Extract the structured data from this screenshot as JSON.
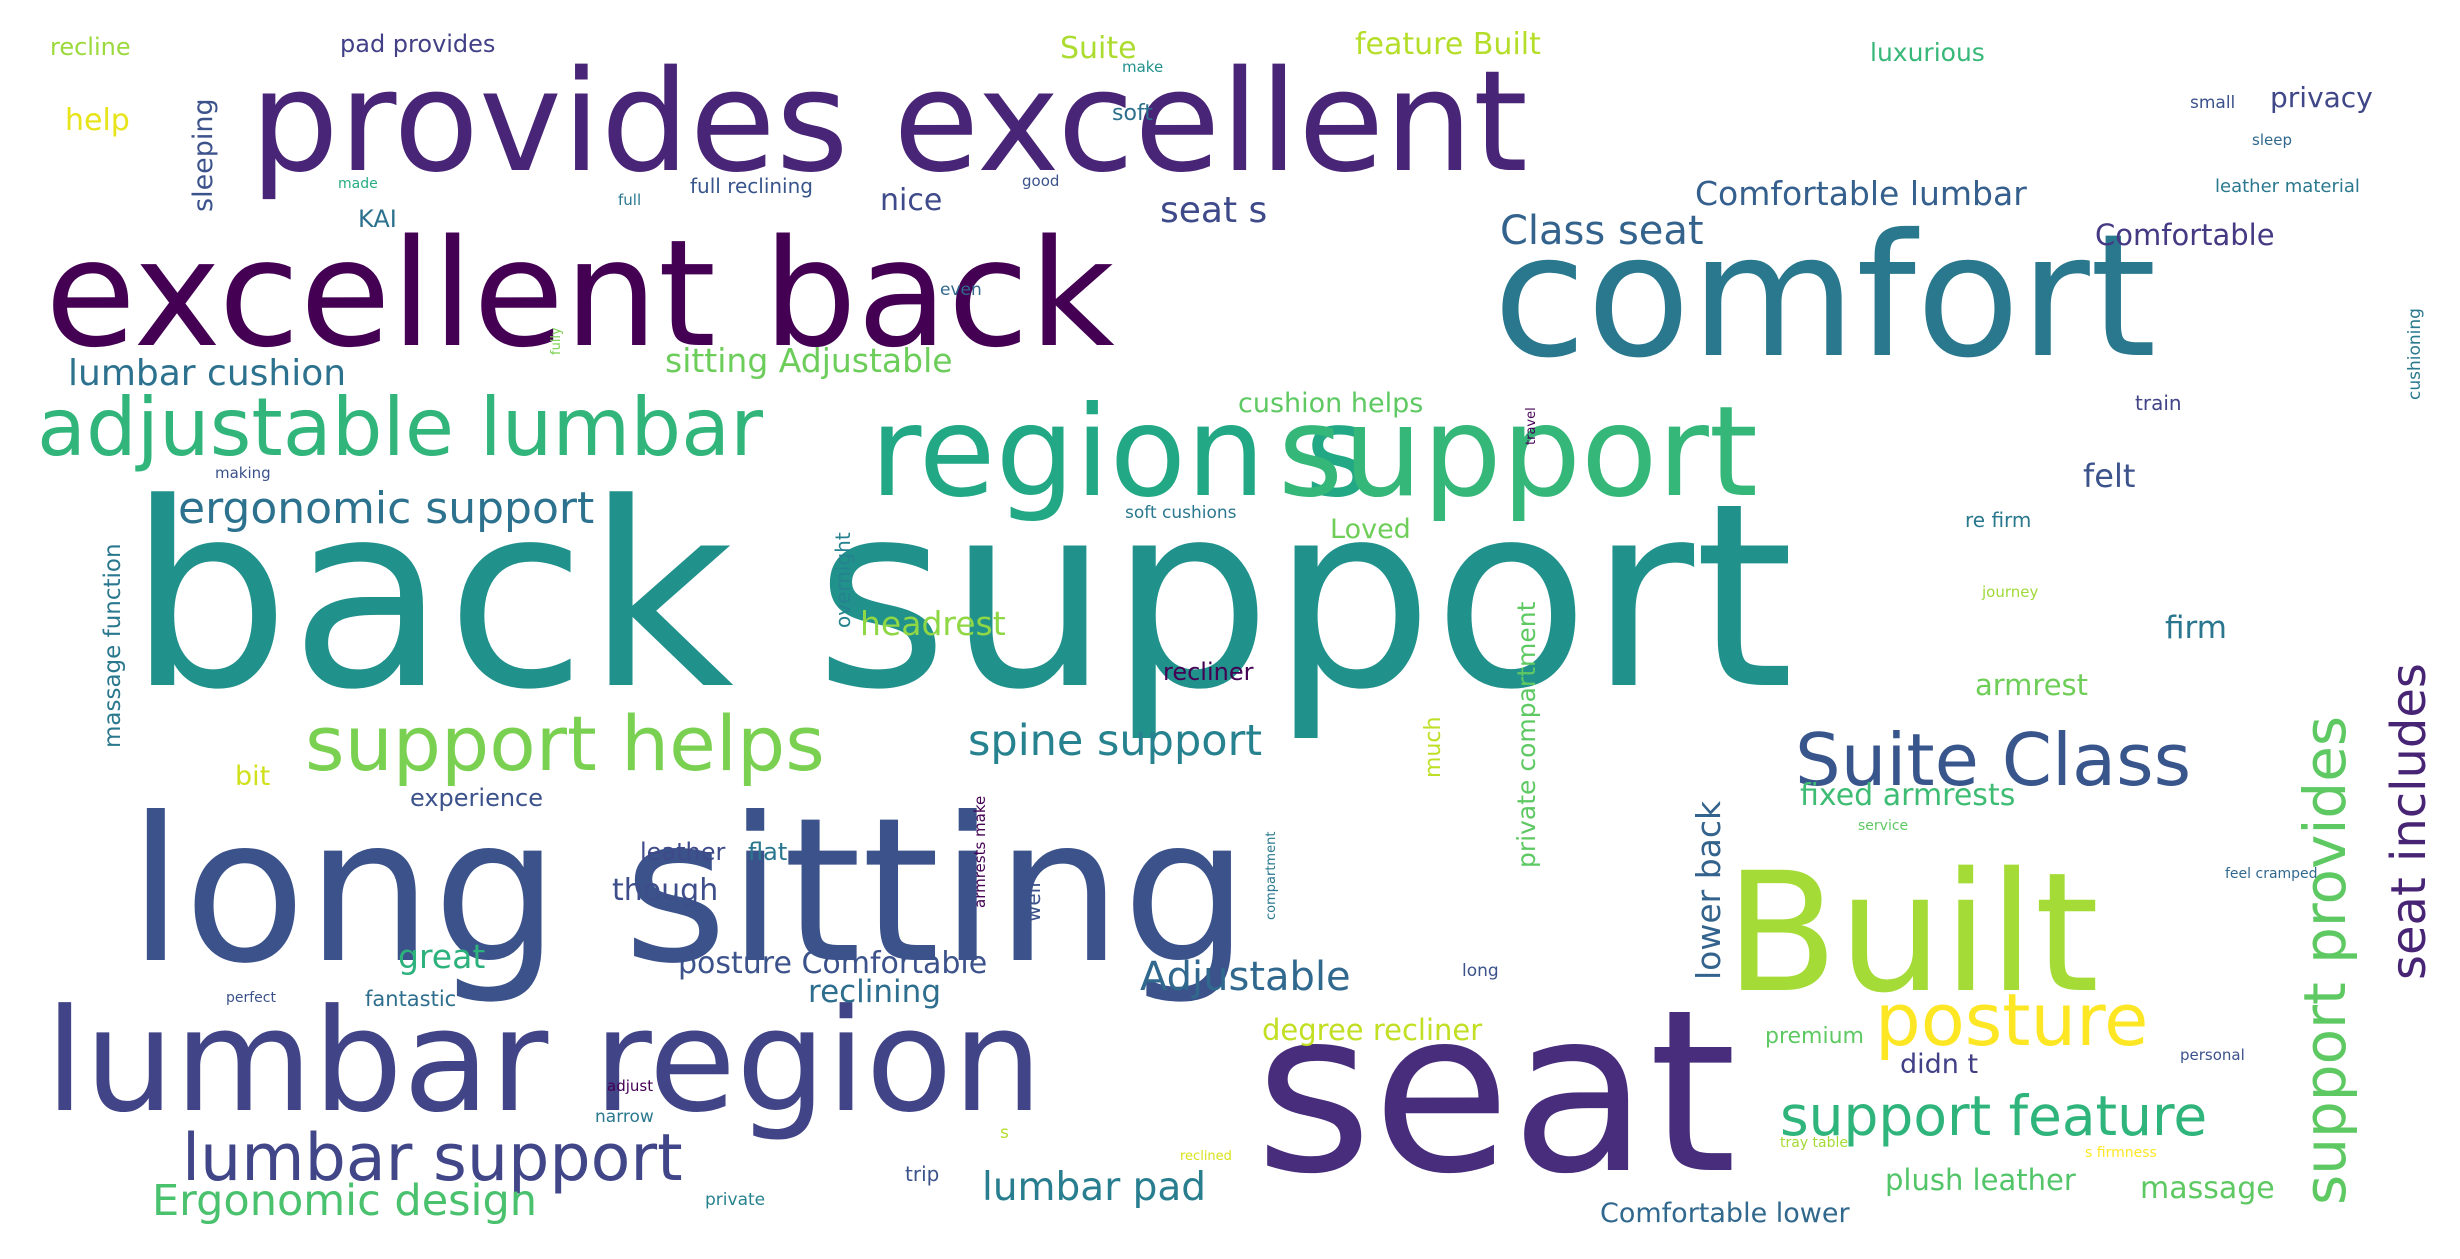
{
  "words": [
    {
      "text": "back support",
      "color": "#21918c"
    },
    {
      "text": "long sitting",
      "color": "#3b528b"
    },
    {
      "text": "comfort",
      "color": "#2a788e"
    },
    {
      "text": "seat",
      "color": "#472d7b"
    },
    {
      "text": "excellent back",
      "color": "#440154"
    },
    {
      "text": "provides excellent",
      "color": "#482576"
    },
    {
      "text": "lumbar region",
      "color": "#414487"
    },
    {
      "text": "region s",
      "color": "#22a884"
    },
    {
      "text": "support",
      "color": "#35b779"
    },
    {
      "text": "Built",
      "color": "#a5db36"
    },
    {
      "text": "adjustable lumbar",
      "color": "#31b57b"
    },
    {
      "text": "support helps",
      "color": "#7ad151"
    },
    {
      "text": "Suite Class",
      "color": "#39568c"
    },
    {
      "text": "lumbar support",
      "color": "#404688"
    },
    {
      "text": "posture",
      "color": "#fde725"
    },
    {
      "text": "support feature",
      "color": "#2fb47c"
    },
    {
      "text": "ergonomic support",
      "color": "#2c728e"
    },
    {
      "text": "Ergonomic design",
      "color": "#4ac16d"
    },
    {
      "text": "spine support",
      "color": "#26828e"
    },
    {
      "text": "lumbar cushion",
      "color": "#2c718e"
    },
    {
      "text": "Class seat",
      "color": "#33638d"
    },
    {
      "text": "Adjustable",
      "color": "#31688e"
    },
    {
      "text": "lumbar pad",
      "color": "#287d8e"
    },
    {
      "text": "Comfortable lumbar",
      "color": "#355f8d"
    },
    {
      "text": "sitting Adjustable",
      "color": "#6ccd5a"
    },
    {
      "text": "headrest",
      "color": "#8fd744"
    },
    {
      "text": "seat s",
      "color": "#3e4989"
    },
    {
      "text": "nice",
      "color": "#3e4a89"
    },
    {
      "text": "Comfortable",
      "color": "#443983"
    },
    {
      "text": "cushion helps",
      "color": "#5ec962"
    },
    {
      "text": "Loved",
      "color": "#6ece58"
    },
    {
      "text": "felt",
      "color": "#3b528b"
    },
    {
      "text": "firm",
      "color": "#2a768e"
    },
    {
      "text": "armrest",
      "color": "#6ece58"
    },
    {
      "text": "fixed armrests",
      "color": "#3ebc74"
    },
    {
      "text": "degree recliner",
      "color": "#c2df23"
    },
    {
      "text": "posture Comfortable",
      "color": "#3b528b"
    },
    {
      "text": "reclining",
      "color": "#2e6e8e"
    },
    {
      "text": "great",
      "color": "#2db27d"
    },
    {
      "text": "though",
      "color": "#3d4e8a"
    },
    {
      "text": "plush leather",
      "color": "#52c569"
    },
    {
      "text": "massage",
      "color": "#5ec962"
    },
    {
      "text": "Comfortable lower",
      "color": "#31688e"
    },
    {
      "text": "didn t",
      "color": "#424086"
    },
    {
      "text": "premium",
      "color": "#5ec962"
    },
    {
      "text": "privacy",
      "color": "#3f4788"
    },
    {
      "text": "feature Built",
      "color": "#b5de2b"
    },
    {
      "text": "Suite",
      "color": "#addc30"
    },
    {
      "text": "luxurious",
      "color": "#37b878"
    },
    {
      "text": "pad provides",
      "color": "#424086"
    },
    {
      "text": "recline",
      "color": "#9bd93c"
    },
    {
      "text": "help",
      "color": "#e7e419"
    },
    {
      "text": "KAI",
      "color": "#2c728e"
    },
    {
      "text": "soft",
      "color": "#2d708e"
    },
    {
      "text": "full reclining",
      "color": "#39568c"
    },
    {
      "text": "bit",
      "color": "#d0e11c"
    },
    {
      "text": "experience",
      "color": "#3b528b"
    },
    {
      "text": "flat",
      "color": "#2a768e"
    },
    {
      "text": "leather",
      "color": "#3e4a89"
    },
    {
      "text": "recliner",
      "color": "#440154"
    },
    {
      "text": "fantastic",
      "color": "#2e6e8e"
    },
    {
      "text": "trip",
      "color": "#3b528b"
    },
    {
      "text": "private",
      "color": "#26828e"
    },
    {
      "text": "narrow",
      "color": "#2a788e"
    },
    {
      "text": "adjust",
      "color": "#440154"
    },
    {
      "text": "perfect",
      "color": "#3b528b"
    },
    {
      "text": "even",
      "color": "#31688e"
    },
    {
      "text": "full",
      "color": "#2a788e"
    },
    {
      "text": "made",
      "color": "#25ac82"
    },
    {
      "text": "good",
      "color": "#3b528b"
    },
    {
      "text": "make",
      "color": "#21918c"
    },
    {
      "text": "small",
      "color": "#3b528b"
    },
    {
      "text": "sleep",
      "color": "#31688e"
    },
    {
      "text": "leather material",
      "color": "#2a788e"
    },
    {
      "text": "train",
      "color": "#414487"
    },
    {
      "text": "soft cushions",
      "color": "#2a788e"
    },
    {
      "text": "re firm",
      "color": "#2a788e"
    },
    {
      "text": "journey",
      "color": "#a0da39"
    },
    {
      "text": "making",
      "color": "#3b528b"
    },
    {
      "text": "long",
      "color": "#3b528b"
    },
    {
      "text": "s",
      "color": "#b5de2b"
    },
    {
      "text": "reclined",
      "color": "#d8e219"
    },
    {
      "text": "tray table",
      "color": "#a5db36"
    },
    {
      "text": "s firmness",
      "color": "#fde725"
    },
    {
      "text": "personal",
      "color": "#3b528b"
    },
    {
      "text": "feel cramped",
      "color": "#31688e"
    },
    {
      "text": "service",
      "color": "#5ec962"
    },
    {
      "text": "seat includes",
      "color": "#482475"
    },
    {
      "text": "support provides",
      "color": "#5ec962"
    },
    {
      "text": "lower back",
      "color": "#33638d"
    },
    {
      "text": "private compartment",
      "color": "#5ec962"
    },
    {
      "text": "massage function",
      "color": "#2a788e"
    },
    {
      "text": "sleeping",
      "color": "#3b528b"
    },
    {
      "text": "overnight",
      "color": "#26828e"
    },
    {
      "text": "much",
      "color": "#bddf26"
    },
    {
      "text": "travel",
      "color": "#440154"
    },
    {
      "text": "fully",
      "color": "#7ad151"
    },
    {
      "text": "compartment",
      "color": "#2a788e"
    },
    {
      "text": "armrests make",
      "color": "#440154"
    },
    {
      "text": "well",
      "color": "#3b528b"
    },
    {
      "text": "cushioning",
      "color": "#2a788e"
    }
  ]
}
